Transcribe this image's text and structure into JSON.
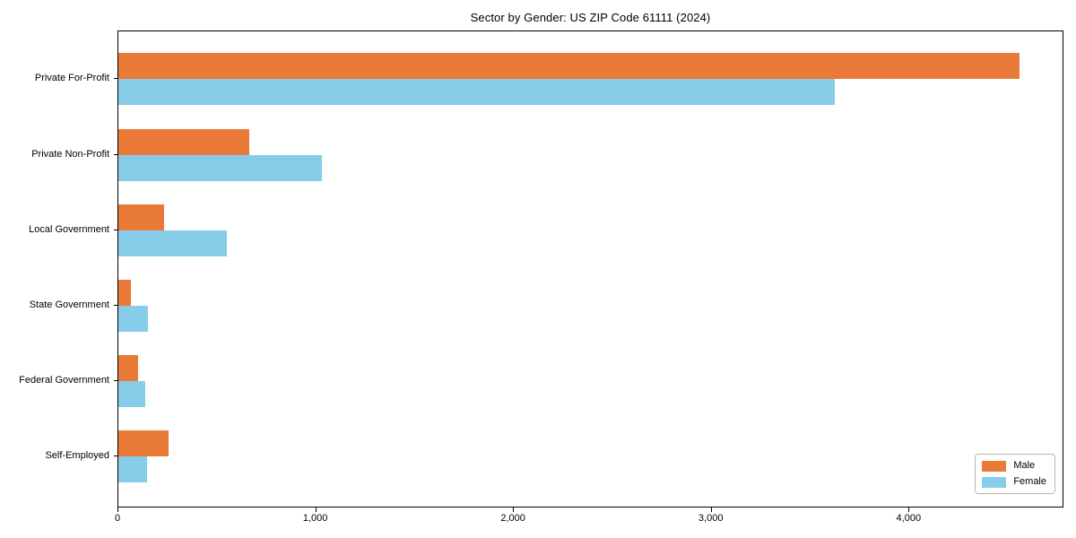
{
  "chart_data": {
    "type": "bar",
    "orientation": "horizontal",
    "title": "Sector by Gender: US ZIP Code 61111 (2024)",
    "categories": [
      "Private For-Profit",
      "Private Non-Profit",
      "Local Government",
      "State Government",
      "Federal Government",
      "Self-Employed"
    ],
    "series": [
      {
        "name": "Male",
        "color": "#EA7A38",
        "values": [
          4555,
          660,
          230,
          64,
          98,
          255
        ]
      },
      {
        "name": "Female",
        "color": "#87CDE9",
        "values": [
          3620,
          1030,
          550,
          150,
          136,
          147
        ]
      }
    ],
    "xlabel": "",
    "ylabel": "",
    "xlim": [
      0,
      4783
    ],
    "xticks": [
      0,
      1000,
      2000,
      3000,
      4000
    ],
    "xtick_labels": [
      "0",
      "1,000",
      "2,000",
      "3,000",
      "4,000"
    ],
    "legend_position": "lower right",
    "grid": false,
    "background_color": "#ffffff"
  }
}
